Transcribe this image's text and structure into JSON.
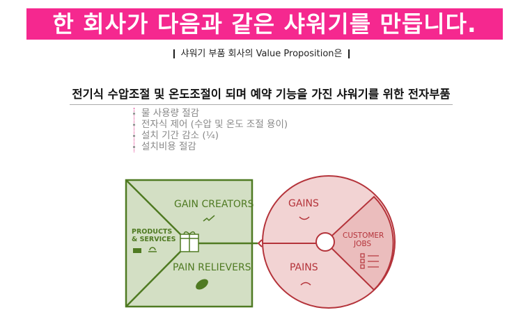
{
  "title": "한 회사가 다음과 같은 샤워기를 만듭니다.",
  "subtitle": "❙ 샤워기 부품 회사의 Value Proposition은 ❙",
  "headline": "전기식 수압조절 및 온도조절이 되며 예약 기능을 가진 샤워기를 위한 전자부품",
  "bullets": [
    "물 사용량 절감",
    "전자식 제어 (수압 및 온도 조절 용이)",
    "설치 기간 감소 (¼)",
    "설치비용 절감"
  ],
  "canvas": {
    "gain_creators": "GAIN CREATORS",
    "products_services_1": "PRODUCTS",
    "products_services_2": "& SERVICES",
    "pain_relievers": "PAIN RELIEVERS",
    "gains": "GAINS",
    "pains": "PAINS",
    "customer_jobs_1": "CUSTOMER",
    "customer_jobs_2": "JOBS"
  },
  "colors": {
    "banner": "#f5288f",
    "green": "#4f7a22",
    "green_fill": "#d3dfc4",
    "red": "#b4333a",
    "red_fill": "#f2d3d3"
  }
}
